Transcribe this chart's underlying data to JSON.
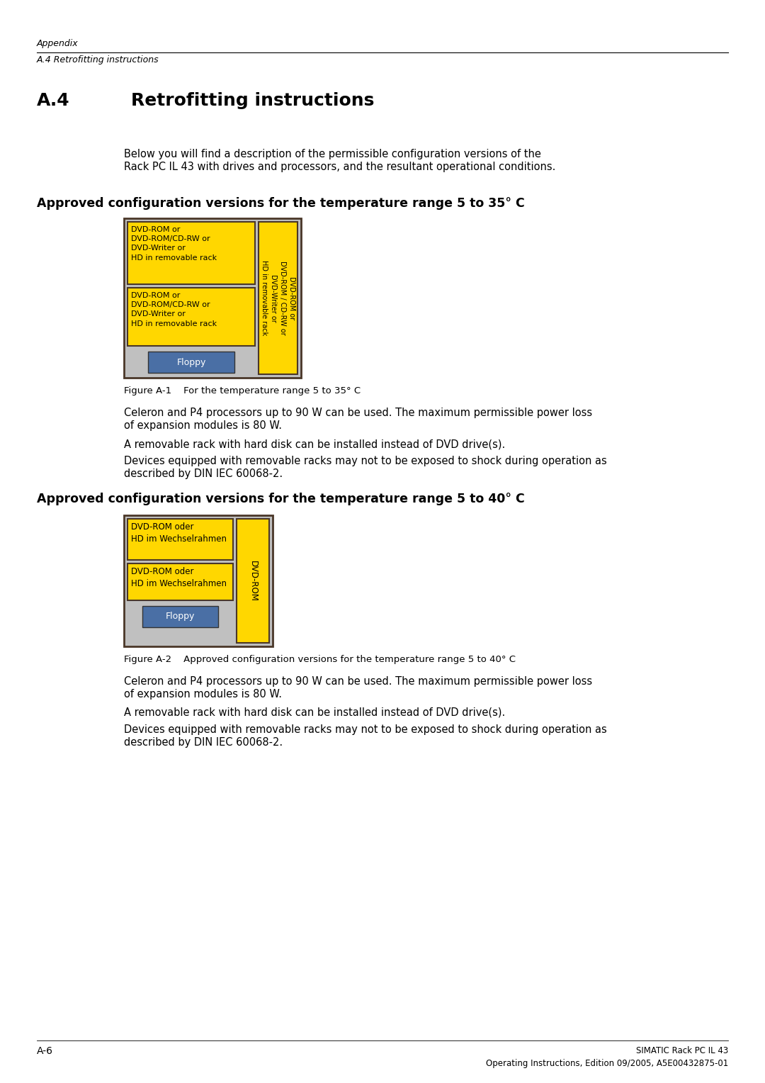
{
  "bg_color": "#ffffff",
  "page_width": 10.8,
  "page_height": 15.28,
  "header_italic_line1": "Appendix",
  "header_italic_line2": "A.4 Retrofitting instructions",
  "main_title_prefix": "A.4",
  "main_title_suffix": "Retrofitting instructions",
  "intro_text_line1": "Below you will find a description of the permissible configuration versions of the",
  "intro_text_line2": "Rack PC IL 43 with drives and processors, and the resultant operational conditions.",
  "section1_title": "Approved configuration versions for the temperature range 5 to 35° C",
  "section2_title": "Approved configuration versions for the temperature range 5 to 40° C",
  "fig1_caption": "Figure A-1    For the temperature range 5 to 35° C",
  "fig2_caption": "Figure A-2    Approved configuration versions for the temperature range 5 to 40° C",
  "body_text1_line1": "Celeron and P4 processors up to 90 W can be used. The maximum permissible power loss",
  "body_text1_line2": "of expansion modules is 80 W.",
  "body_text2": "A removable rack with hard disk can be installed instead of DVD drive(s).",
  "body_text3_line1": "Devices equipped with removable racks may not to be exposed to shock during operation as",
  "body_text3_line2": "described by DIN IEC 60068-2.",
  "footer_left": "A-6",
  "footer_right_line1": "SIMATIC Rack PC IL 43",
  "footer_right_line2": "Operating Instructions, Edition 09/2005, A5E00432875-01",
  "yellow": "#FFD700",
  "blue_floppy": "#4A6FA5",
  "gray_bg": "#C0C0C0",
  "dark_border": "#4A3728",
  "fig1_box1_text": "DVD-ROM or\nDVD-ROM/CD-RW or\nDVD-Writer or\nHD in removable rack",
  "fig1_box2_text": "DVD-ROM or\nDVD-ROM/CD-RW or\nDVD-Writer or\nHD in removable rack",
  "fig1_right_text": "DVD-ROM or\nDVD-ROM / CD-RW or\nDVD-Writer or\nHD in removable rack",
  "fig1_floppy_text": "Floppy",
  "fig2_box1_text": "DVD-ROM oder\nHD im Wechselrahmen",
  "fig2_box2_text": "DVD-ROM oder\nHD im Wechselrahmen",
  "fig2_right_text": "DVD-ROM",
  "fig2_floppy_text": "Floppy"
}
